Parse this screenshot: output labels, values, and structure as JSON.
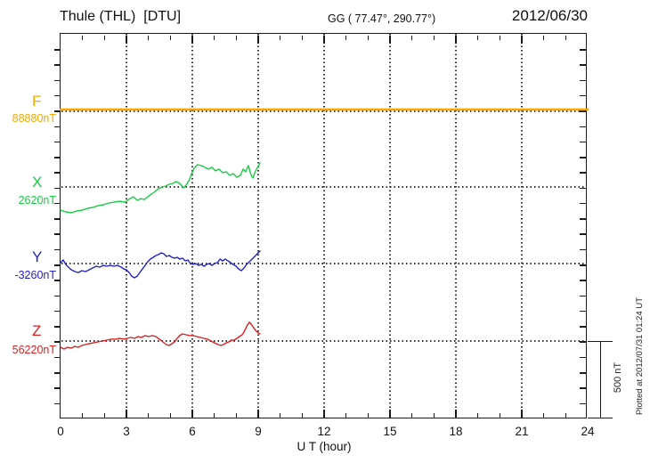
{
  "header": {
    "station": "Thule (THL)  [DTU]",
    "coords": "GG ( 77.47°, 290.77°)",
    "date": "2012/06/30"
  },
  "side_labels": [
    {
      "name": "F",
      "value": "88880nT",
      "color": "#F5A800"
    },
    {
      "name": "X",
      "value": "2620nT",
      "color": "#18CC44"
    },
    {
      "name": "Y",
      "value": "-3260nT",
      "color": "#2222CC"
    },
    {
      "name": "Z",
      "value": "56220nT",
      "color": "#DD2020"
    }
  ],
  "axis": {
    "x_label": "U T (hour)",
    "x_ticks": [
      "0",
      "3",
      "6",
      "9",
      "12",
      "15",
      "18",
      "21",
      "24"
    ]
  },
  "scale_bar_label": "500 nT",
  "plotted_note": "Plotted at 2012/07/31 01:24 UT",
  "colors": {
    "axis": "#1a1a1a",
    "grid_dots": "#333333",
    "background": "#ffffff"
  },
  "chart_data": {
    "type": "line",
    "title": "Thule (THL) [DTU] magnetogram",
    "xlabel": "U T (hour)",
    "xlim": [
      0,
      24
    ],
    "x_tick_values": [
      0,
      3,
      6,
      9,
      12,
      15,
      18,
      21,
      24
    ],
    "minor_x_tick_hours": 1,
    "grid": "dotted, vertical every 3 h, horizontal at each component baseline",
    "scale_bar": {
      "label": "500 nT",
      "nT": 500
    },
    "note": "X, Y, Z data end near 9.1 UT; F is a flat full-width line at its baseline",
    "series": [
      {
        "name": "F",
        "baseline_nT": 88880,
        "color": "#FFA500",
        "width": 2.5,
        "points": [
          [
            0,
            0
          ],
          [
            24,
            0
          ]
        ]
      },
      {
        "name": "X",
        "baseline_nT": 2620,
        "color": "#18CC44",
        "width": 1.4,
        "points": [
          [
            0,
            -150
          ],
          [
            0.24,
            -161
          ],
          [
            0.49,
            -167
          ],
          [
            0.73,
            -155
          ],
          [
            0.97,
            -150
          ],
          [
            1.22,
            -138
          ],
          [
            1.46,
            -132
          ],
          [
            1.7,
            -121
          ],
          [
            1.95,
            -115
          ],
          [
            2.19,
            -104
          ],
          [
            2.43,
            -98
          ],
          [
            2.68,
            -92
          ],
          [
            2.92,
            -98
          ],
          [
            3.16,
            -75
          ],
          [
            3.32,
            -63
          ],
          [
            3.49,
            -86
          ],
          [
            3.65,
            -75
          ],
          [
            3.81,
            -81
          ],
          [
            3.97,
            -63
          ],
          [
            4.14,
            -46
          ],
          [
            4.3,
            -29
          ],
          [
            4.46,
            -12
          ],
          [
            4.62,
            0
          ],
          [
            4.78,
            6
          ],
          [
            4.95,
            17
          ],
          [
            5.11,
            23
          ],
          [
            5.27,
            35
          ],
          [
            5.43,
            23
          ],
          [
            5.6,
            -6
          ],
          [
            5.72,
            12
          ],
          [
            5.84,
            40
          ],
          [
            5.96,
            81
          ],
          [
            6.08,
            121
          ],
          [
            6.24,
            144
          ],
          [
            6.41,
            138
          ],
          [
            6.57,
            127
          ],
          [
            6.73,
            115
          ],
          [
            6.89,
            127
          ],
          [
            7.05,
            104
          ],
          [
            7.22,
            115
          ],
          [
            7.38,
            92
          ],
          [
            7.54,
            98
          ],
          [
            7.7,
            75
          ],
          [
            7.86,
            86
          ],
          [
            8.03,
            63
          ],
          [
            8.19,
            75
          ],
          [
            8.31,
            115
          ],
          [
            8.43,
            98
          ],
          [
            8.55,
            138
          ],
          [
            8.68,
            75
          ],
          [
            8.76,
            58
          ],
          [
            8.84,
            92
          ],
          [
            8.92,
            115
          ],
          [
            9.0,
            132
          ],
          [
            9.08,
            155
          ]
        ]
      },
      {
        "name": "Y",
        "baseline_nT": -3260,
        "color": "#2222CC",
        "width": 1.4,
        "points": [
          [
            0,
            6
          ],
          [
            0.12,
            23
          ],
          [
            0.24,
            -6
          ],
          [
            0.36,
            -23
          ],
          [
            0.49,
            -40
          ],
          [
            0.65,
            -52
          ],
          [
            0.81,
            -58
          ],
          [
            0.97,
            -46
          ],
          [
            1.14,
            -52
          ],
          [
            1.3,
            -40
          ],
          [
            1.46,
            -29
          ],
          [
            1.62,
            -17
          ],
          [
            1.78,
            -23
          ],
          [
            1.95,
            -12
          ],
          [
            2.11,
            -17
          ],
          [
            2.27,
            -12
          ],
          [
            2.43,
            -17
          ],
          [
            2.59,
            -12
          ],
          [
            2.76,
            -23
          ],
          [
            2.88,
            -35
          ],
          [
            3.0,
            -40
          ],
          [
            3.12,
            -58
          ],
          [
            3.24,
            -81
          ],
          [
            3.37,
            -92
          ],
          [
            3.49,
            -81
          ],
          [
            3.61,
            -58
          ],
          [
            3.73,
            -35
          ],
          [
            3.85,
            -12
          ],
          [
            3.97,
            12
          ],
          [
            4.09,
            29
          ],
          [
            4.22,
            40
          ],
          [
            4.34,
            52
          ],
          [
            4.46,
            58
          ],
          [
            4.58,
            69
          ],
          [
            4.7,
            63
          ],
          [
            4.82,
            46
          ],
          [
            4.95,
            52
          ],
          [
            5.07,
            40
          ],
          [
            5.19,
            35
          ],
          [
            5.31,
            40
          ],
          [
            5.43,
            29
          ],
          [
            5.55,
            35
          ],
          [
            5.68,
            17
          ],
          [
            5.8,
            23
          ],
          [
            5.92,
            0
          ],
          [
            6.04,
            -6
          ],
          [
            6.16,
            0
          ],
          [
            6.28,
            -12
          ],
          [
            6.41,
            -6
          ],
          [
            6.53,
            -17
          ],
          [
            6.65,
            -6
          ],
          [
            6.77,
            0
          ],
          [
            6.89,
            -12
          ],
          [
            7.01,
            0
          ],
          [
            7.14,
            6
          ],
          [
            7.26,
            29
          ],
          [
            7.38,
            17
          ],
          [
            7.5,
            29
          ],
          [
            7.62,
            17
          ],
          [
            7.74,
            6
          ],
          [
            7.86,
            -6
          ],
          [
            7.99,
            -17
          ],
          [
            8.11,
            -35
          ],
          [
            8.23,
            -46
          ],
          [
            8.35,
            -29
          ],
          [
            8.47,
            -6
          ],
          [
            8.6,
            12
          ],
          [
            8.72,
            29
          ],
          [
            8.84,
            46
          ],
          [
            8.96,
            63
          ],
          [
            9.08,
            81
          ]
        ]
      },
      {
        "name": "Z",
        "baseline_nT": 56220,
        "color": "#DD2020",
        "width": 1.4,
        "points": [
          [
            0,
            -40
          ],
          [
            0.16,
            -52
          ],
          [
            0.32,
            -40
          ],
          [
            0.49,
            -46
          ],
          [
            0.65,
            -35
          ],
          [
            0.81,
            -40
          ],
          [
            0.97,
            -29
          ],
          [
            1.14,
            -23
          ],
          [
            1.3,
            -17
          ],
          [
            1.5,
            -12
          ],
          [
            1.7,
            -6
          ],
          [
            1.91,
            0
          ],
          [
            2.11,
            6
          ],
          [
            2.31,
            12
          ],
          [
            2.51,
            12
          ],
          [
            2.72,
            17
          ],
          [
            2.88,
            12
          ],
          [
            3.04,
            17
          ],
          [
            3.2,
            23
          ],
          [
            3.37,
            17
          ],
          [
            3.53,
            29
          ],
          [
            3.69,
            23
          ],
          [
            3.85,
            35
          ],
          [
            4.01,
            29
          ],
          [
            4.18,
            35
          ],
          [
            4.34,
            29
          ],
          [
            4.5,
            12
          ],
          [
            4.66,
            -6
          ],
          [
            4.82,
            -23
          ],
          [
            4.95,
            -29
          ],
          [
            5.07,
            -17
          ],
          [
            5.19,
            -6
          ],
          [
            5.31,
            17
          ],
          [
            5.43,
            35
          ],
          [
            5.55,
            46
          ],
          [
            5.72,
            40
          ],
          [
            5.88,
            35
          ],
          [
            6.04,
            35
          ],
          [
            6.2,
            29
          ],
          [
            6.37,
            23
          ],
          [
            6.53,
            17
          ],
          [
            6.69,
            12
          ],
          [
            6.85,
            0
          ],
          [
            7.01,
            -12
          ],
          [
            7.18,
            -23
          ],
          [
            7.3,
            -29
          ],
          [
            7.42,
            -23
          ],
          [
            7.54,
            -12
          ],
          [
            7.66,
            -6
          ],
          [
            7.78,
            6
          ],
          [
            7.91,
            6
          ],
          [
            8.03,
            17
          ],
          [
            8.15,
            29
          ],
          [
            8.27,
            40
          ],
          [
            8.35,
            58
          ],
          [
            8.43,
            81
          ],
          [
            8.51,
            104
          ],
          [
            8.6,
            121
          ],
          [
            8.68,
            109
          ],
          [
            8.76,
            92
          ],
          [
            8.84,
            75
          ],
          [
            8.92,
            63
          ],
          [
            9.0,
            52
          ],
          [
            9.08,
            46
          ]
        ]
      }
    ]
  }
}
